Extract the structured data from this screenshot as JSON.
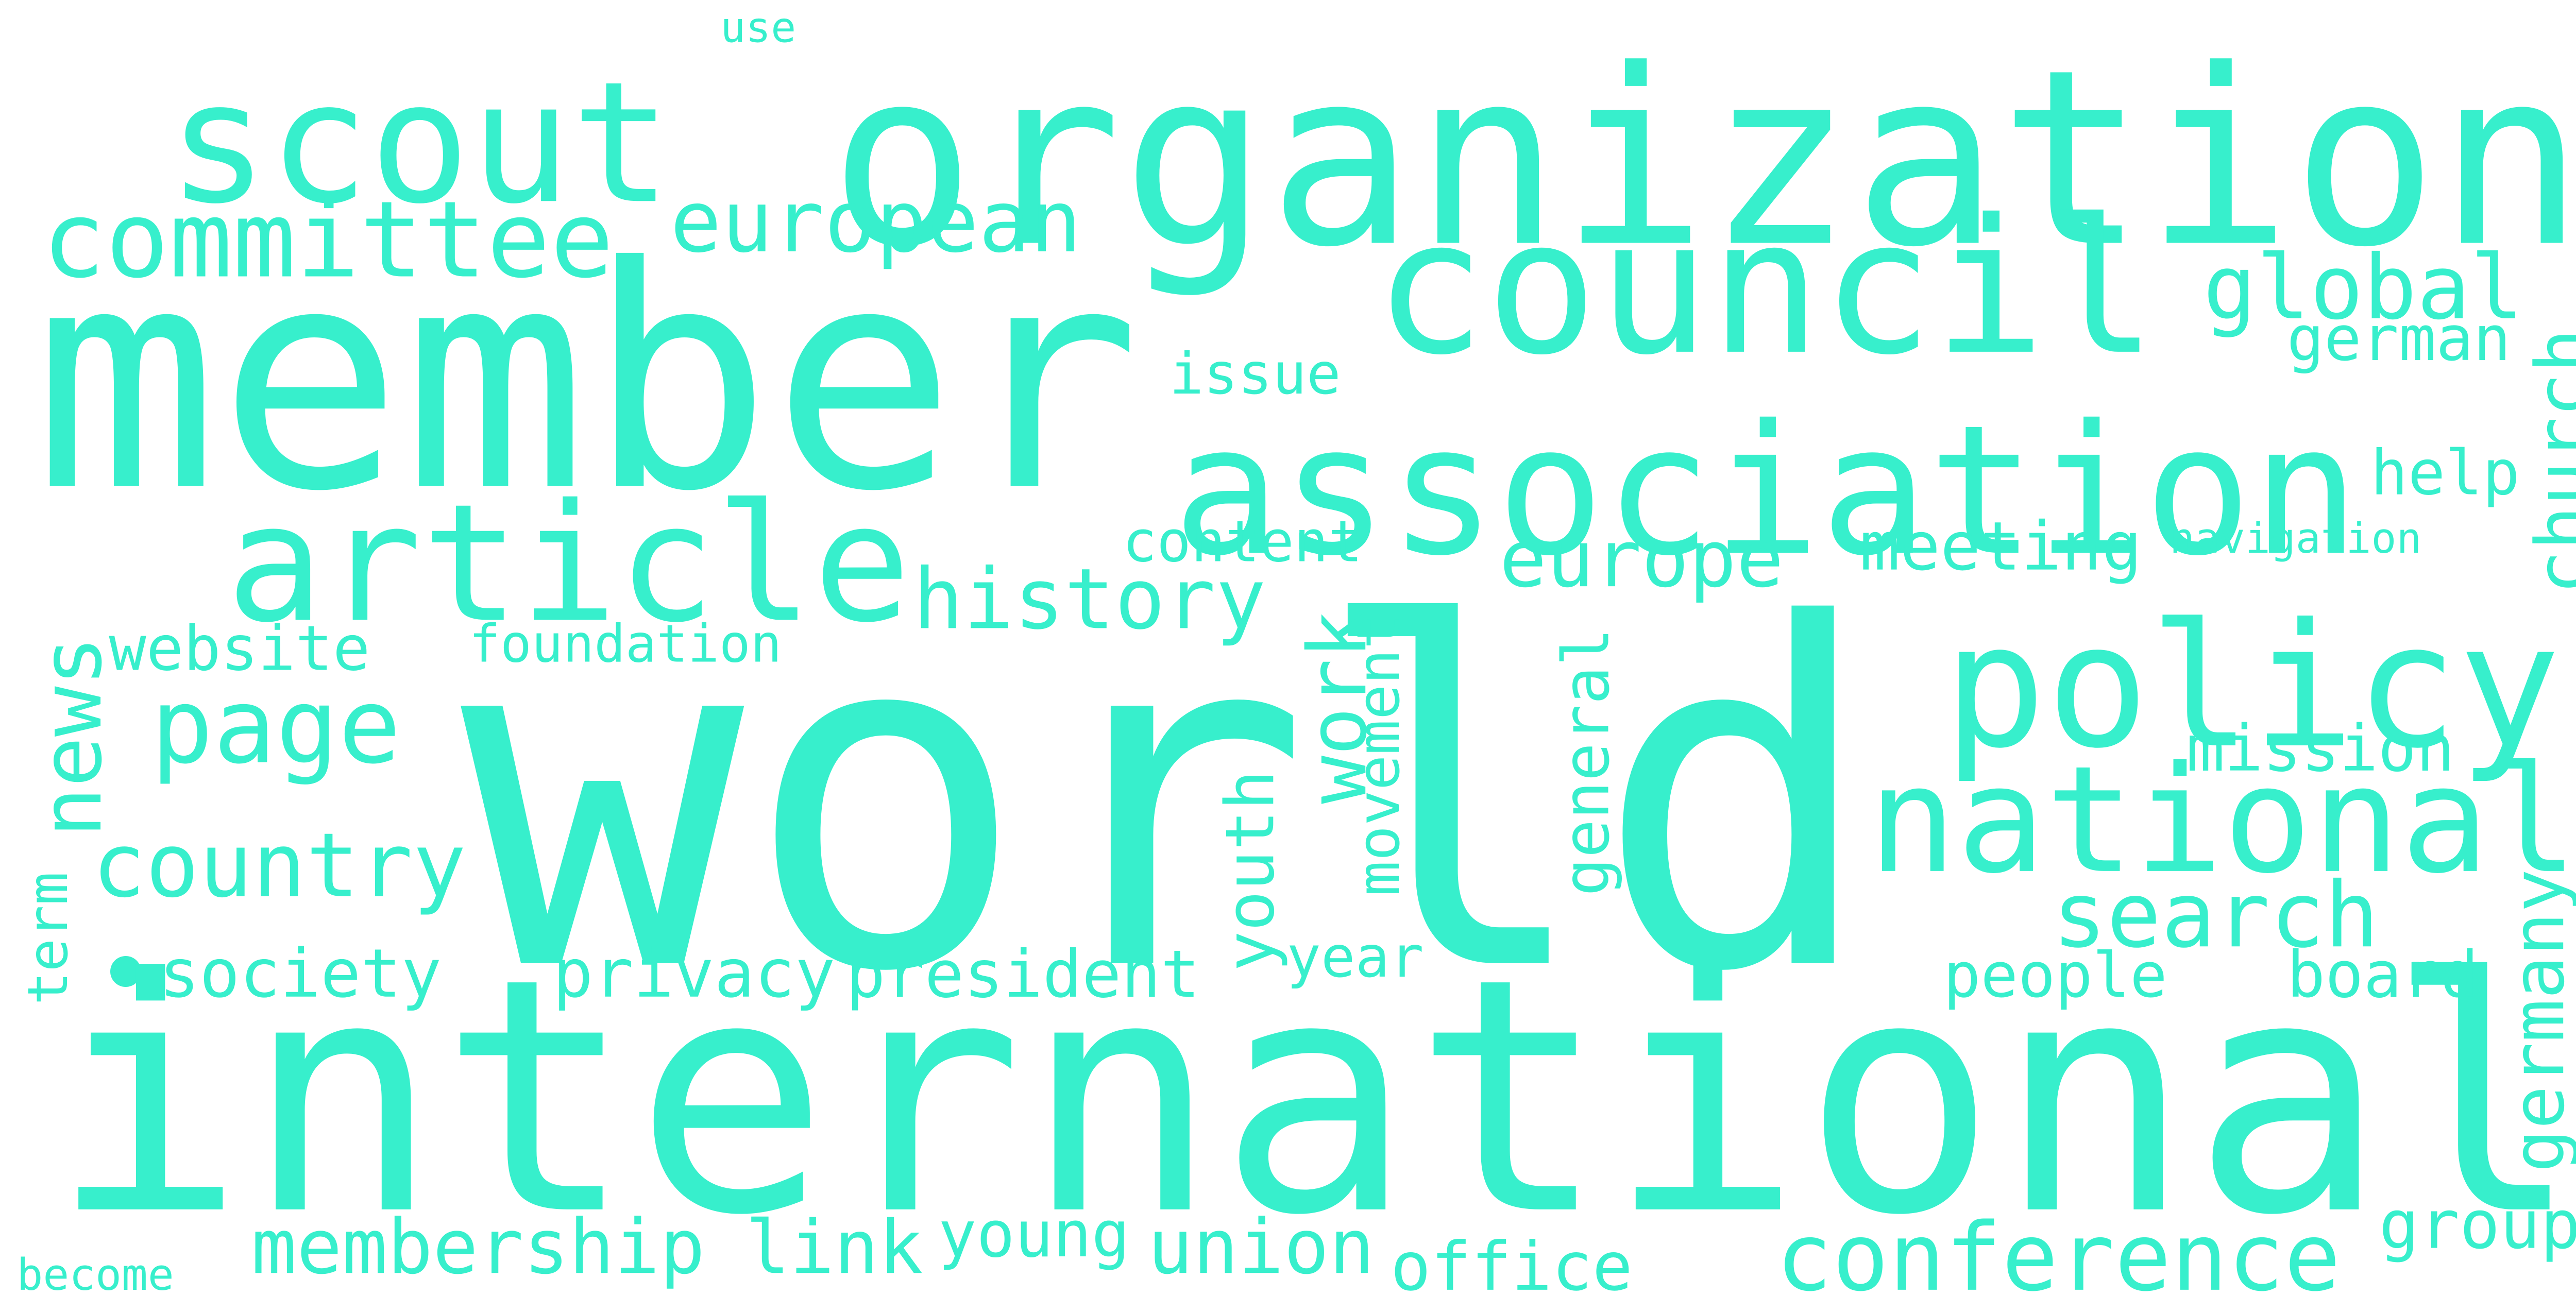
{
  "words": [
    "world",
    "international",
    "member",
    "organization",
    "association",
    "council",
    "scout",
    "article",
    "policy",
    "national",
    "committee",
    "european",
    "global",
    "german",
    "issue",
    "church",
    "help",
    "history",
    "europe",
    "meeting",
    "content",
    "navigation",
    "page",
    "news",
    "website",
    "foundation",
    "work",
    "movement",
    "general",
    "mission",
    "country",
    "youth",
    "search",
    "term",
    "society",
    "privacy",
    "president",
    "year",
    "people",
    "board",
    "germany",
    "membership",
    "link",
    "young",
    "union",
    "office",
    "conference",
    "group",
    "become",
    "use"
  ]
}
